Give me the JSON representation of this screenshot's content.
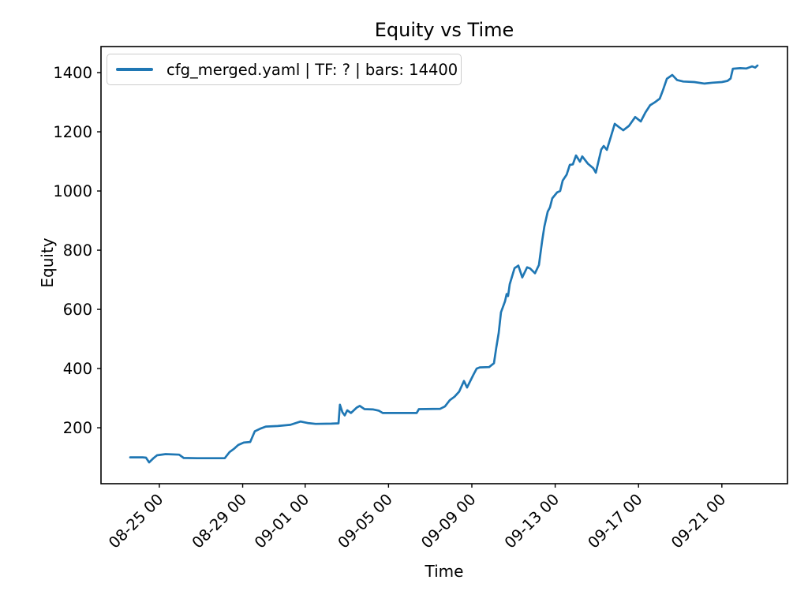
{
  "figure": {
    "title": "Equity vs Time",
    "background_color": "#ffffff"
  },
  "legend": {
    "label": "cfg_merged.yaml | TF: ? | bars: 14400",
    "line_color": "#1f77b4",
    "position": "upper left"
  },
  "chart_data": {
    "type": "line",
    "title": "Equity vs Time",
    "xlabel": "Time",
    "ylabel": "Equity",
    "grid": false,
    "line_color": "#1f77b4",
    "x_unit": "days relative to the '08-25 00' tick",
    "x_range_days": [
      -2.8,
      30.15
    ],
    "y_range": [
      11,
      1488
    ],
    "x_ticks": [
      {
        "offset_days": 0,
        "label": "08-25 00"
      },
      {
        "offset_days": 4,
        "label": "08-29 00"
      },
      {
        "offset_days": 7,
        "label": "09-01 00"
      },
      {
        "offset_days": 11,
        "label": "09-05 00"
      },
      {
        "offset_days": 15,
        "label": "09-09 00"
      },
      {
        "offset_days": 19,
        "label": "09-13 00"
      },
      {
        "offset_days": 23,
        "label": "09-17 00"
      },
      {
        "offset_days": 27,
        "label": "09-21 00"
      }
    ],
    "y_ticks": [
      200,
      400,
      600,
      800,
      1000,
      1200,
      1400
    ],
    "series": [
      {
        "name": "cfg_merged.yaml | TF: ? | bars: 14400",
        "color": "#1f77b4",
        "points": [
          [
            -1.4,
            100
          ],
          [
            -0.8,
            100
          ],
          [
            -0.64,
            99
          ],
          [
            -0.49,
            83
          ],
          [
            -0.27,
            98
          ],
          [
            -0.11,
            107
          ],
          [
            0.3,
            111
          ],
          [
            0.95,
            109
          ],
          [
            1.17,
            98
          ],
          [
            1.82,
            97
          ],
          [
            3.14,
            97
          ],
          [
            3.37,
            118
          ],
          [
            3.6,
            130
          ],
          [
            3.79,
            142
          ],
          [
            4.05,
            150
          ],
          [
            4.36,
            152
          ],
          [
            4.47,
            170
          ],
          [
            4.58,
            188
          ],
          [
            4.85,
            197
          ],
          [
            5.11,
            204
          ],
          [
            5.68,
            206
          ],
          [
            6.29,
            210
          ],
          [
            6.78,
            221
          ],
          [
            7.12,
            216
          ],
          [
            7.5,
            213
          ],
          [
            8.26,
            214
          ],
          [
            8.6,
            215
          ],
          [
            8.67,
            278
          ],
          [
            8.79,
            252
          ],
          [
            8.9,
            242
          ],
          [
            9.02,
            259
          ],
          [
            9.2,
            250
          ],
          [
            9.47,
            268
          ],
          [
            9.62,
            274
          ],
          [
            9.85,
            263
          ],
          [
            10.27,
            262
          ],
          [
            10.53,
            258
          ],
          [
            10.72,
            250
          ],
          [
            12.35,
            250
          ],
          [
            12.46,
            263
          ],
          [
            13.48,
            264
          ],
          [
            13.71,
            272
          ],
          [
            13.94,
            293
          ],
          [
            14.17,
            305
          ],
          [
            14.39,
            322
          ],
          [
            14.62,
            358
          ],
          [
            14.77,
            336
          ],
          [
            15.08,
            380
          ],
          [
            15.23,
            400
          ],
          [
            15.38,
            404
          ],
          [
            15.83,
            405
          ],
          [
            16.06,
            418
          ],
          [
            16.17,
            470
          ],
          [
            16.29,
            520
          ],
          [
            16.4,
            590
          ],
          [
            16.59,
            627
          ],
          [
            16.67,
            652
          ],
          [
            16.74,
            645
          ],
          [
            16.82,
            685
          ],
          [
            17.05,
            739
          ],
          [
            17.23,
            748
          ],
          [
            17.42,
            708
          ],
          [
            17.65,
            742
          ],
          [
            17.8,
            738
          ],
          [
            18.03,
            722
          ],
          [
            18.22,
            750
          ],
          [
            18.37,
            830
          ],
          [
            18.48,
            880
          ],
          [
            18.64,
            930
          ],
          [
            18.75,
            945
          ],
          [
            18.86,
            975
          ],
          [
            19.09,
            995
          ],
          [
            19.24,
            1000
          ],
          [
            19.36,
            1035
          ],
          [
            19.55,
            1055
          ],
          [
            19.7,
            1088
          ],
          [
            19.85,
            1090
          ],
          [
            20.0,
            1120
          ],
          [
            20.19,
            1099
          ],
          [
            20.3,
            1117
          ],
          [
            20.57,
            1092
          ],
          [
            20.83,
            1077
          ],
          [
            20.95,
            1062
          ],
          [
            21.21,
            1140
          ],
          [
            21.33,
            1152
          ],
          [
            21.48,
            1139
          ],
          [
            21.7,
            1190
          ],
          [
            21.86,
            1227
          ],
          [
            22.08,
            1215
          ],
          [
            22.27,
            1205
          ],
          [
            22.54,
            1220
          ],
          [
            22.84,
            1250
          ],
          [
            23.11,
            1235
          ],
          [
            23.33,
            1265
          ],
          [
            23.56,
            1290
          ],
          [
            23.79,
            1300
          ],
          [
            24.02,
            1312
          ],
          [
            24.17,
            1340
          ],
          [
            24.36,
            1379
          ],
          [
            24.62,
            1392
          ],
          [
            24.85,
            1375
          ],
          [
            25.15,
            1370
          ],
          [
            25.68,
            1368
          ],
          [
            26.17,
            1363
          ],
          [
            26.55,
            1366
          ],
          [
            27.0,
            1368
          ],
          [
            27.27,
            1372
          ],
          [
            27.42,
            1380
          ],
          [
            27.53,
            1413
          ],
          [
            27.88,
            1415
          ],
          [
            28.18,
            1414
          ],
          [
            28.45,
            1421
          ],
          [
            28.6,
            1417
          ],
          [
            28.71,
            1424
          ]
        ]
      }
    ]
  }
}
